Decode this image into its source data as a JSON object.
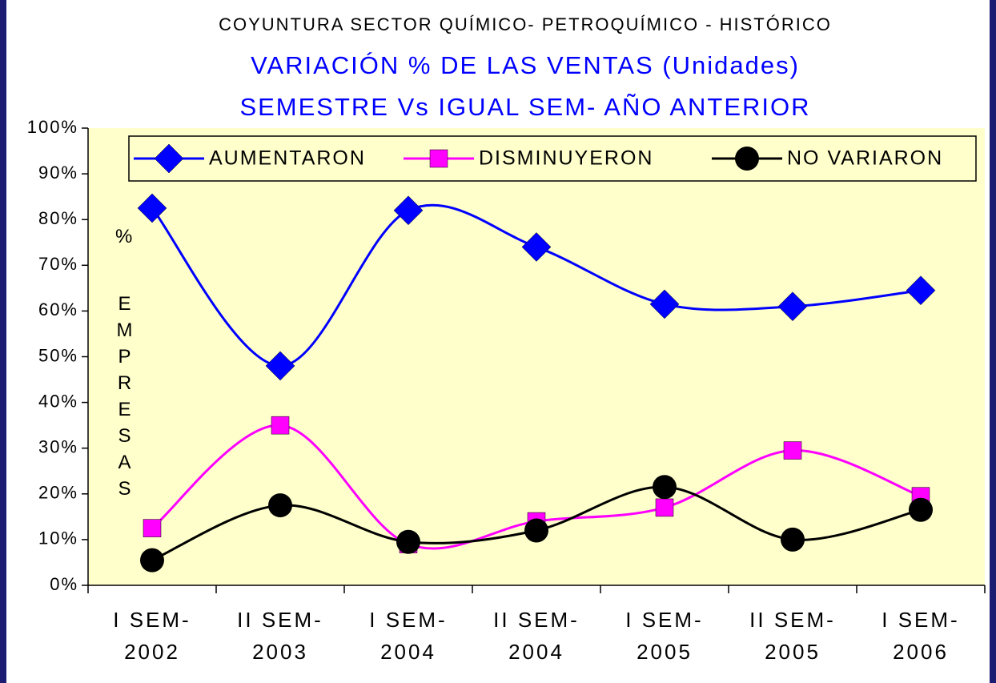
{
  "chart_data": {
    "type": "line",
    "title": "COYUNTURA SECTOR QUÍMICO- PETROQUÍMICO - HISTÓRICO",
    "subtitle": "VARIACIÓN % DE LAS VENTAS (Unidades)",
    "subtitle2": "SEMESTRE Vs IGUAL SEM- AÑO ANTERIOR",
    "ylabel": "%",
    "ylabel2": "EMPRESAS",
    "categories": [
      "I SEM-\n2002",
      "II SEM-\n2003",
      "I SEM-\n2004",
      "II SEM-\n2004",
      "I SEM-\n2005",
      "II SEM-\n2005",
      "I SEM-\n2006"
    ],
    "series": [
      {
        "name": "AUMENTARON",
        "color": "#0000ff",
        "marker": "diamond",
        "values": [
          82.5,
          48,
          82,
          74,
          61.5,
          61,
          64.5
        ]
      },
      {
        "name": "DISMINUYERON",
        "color": "#ff00ff",
        "marker": "square",
        "values": [
          12.5,
          35,
          9,
          14,
          17,
          29.5,
          19.5
        ]
      },
      {
        "name": "NO VARIARON",
        "color": "#000000",
        "marker": "circle",
        "values": [
          5.5,
          17.5,
          9.5,
          12,
          21.5,
          10,
          16.5
        ]
      }
    ],
    "ylim": [
      0,
      100
    ],
    "yticks": [
      {
        "value": 0,
        "label": "0%"
      },
      {
        "value": 10,
        "label": "10%"
      },
      {
        "value": 20,
        "label": "20%"
      },
      {
        "value": 30,
        "label": "30%"
      },
      {
        "value": 40,
        "label": "40%"
      },
      {
        "value": 50,
        "label": "50%"
      },
      {
        "value": 60,
        "label": "60%"
      },
      {
        "value": 70,
        "label": "70%"
      },
      {
        "value": 80,
        "label": "80%"
      },
      {
        "value": 90,
        "label": "90%"
      },
      {
        "value": 100,
        "label": "100%"
      }
    ],
    "smooth": true,
    "legend": "top"
  }
}
